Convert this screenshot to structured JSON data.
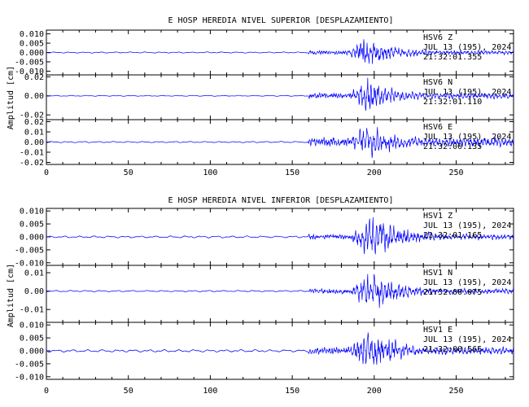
{
  "figure": {
    "title_top": "E HOSP HEREDIA NIVEL SUPERIOR [DESPLAZAMIENTO]",
    "title_bottom": "E HOSP HEREDIA NIVEL INFERIOR [DESPLAZAMIENTO]",
    "ylabel": "Amplitud [cm]",
    "trace_color": "#0000ff"
  },
  "chart_data": [
    {
      "type": "line",
      "title": "E HOSP HEREDIA NIVEL SUPERIOR [DESPLAZAMIENTO]",
      "ylabel": "Amplitud [cm]",
      "xlim": [
        0,
        285
      ],
      "xticks": [
        "0",
        "50",
        "100",
        "150",
        "200",
        "250"
      ],
      "traces": [
        {
          "station": "HSV6",
          "component": "Z",
          "date": "JUL 13 (195), 2024",
          "time": "21:32:01.355",
          "ylim": [
            -0.012,
            0.012
          ],
          "yticks": [
            "0.010",
            "0.005",
            "0.000",
            "-0.005",
            "-0.010"
          ],
          "pre": 0.0004,
          "mid": 0.0015,
          "peak": 0.0102,
          "peak_t": 194,
          "seed": 11
        },
        {
          "station": "HSV6",
          "component": "N",
          "date": "JUL 13 (195), 2024",
          "time": "21:32:01.110",
          "ylim": [
            -0.025,
            0.022
          ],
          "yticks": [
            "0.02",
            "0.00",
            "-0.02"
          ],
          "pre": 0.0006,
          "mid": 0.004,
          "peak": 0.021,
          "peak_t": 196,
          "seed": 23
        },
        {
          "station": "HSV6",
          "component": "E",
          "date": "JUL 13 (195), 2024",
          "time": "21:32:00.135",
          "ylim": [
            -0.022,
            0.022
          ],
          "yticks": [
            "0.02",
            "0.01",
            "0.00",
            "-0.01",
            "-0.02"
          ],
          "pre": 0.0008,
          "mid": 0.006,
          "peak": 0.021,
          "peak_t": 196,
          "seed": 37
        }
      ]
    },
    {
      "type": "line",
      "title": "E HOSP HEREDIA NIVEL INFERIOR [DESPLAZAMIENTO]",
      "ylabel": "Amplitud [cm]",
      "xlim": [
        0,
        285
      ],
      "xticks": [
        "0",
        "50",
        "100",
        "150",
        "200",
        "250"
      ],
      "traces": [
        {
          "station": "HSV1",
          "component": "Z",
          "date": "JUL 13 (195), 2024",
          "time": "21:32:01.165",
          "ylim": [
            -0.011,
            0.011
          ],
          "yticks": [
            "0.010",
            "0.005",
            "0.000",
            "-0.005",
            "-0.010"
          ],
          "pre": 0.0005,
          "mid": 0.0014,
          "peak": 0.0105,
          "peak_t": 199,
          "seed": 51
        },
        {
          "station": "HSV1",
          "component": "N",
          "date": "JUL 13 (195), 2024",
          "time": "21:32:00.075",
          "ylim": [
            -0.017,
            0.014
          ],
          "yticks": [
            "0.01",
            "0.00",
            "-0.01"
          ],
          "pre": 0.0005,
          "mid": 0.0018,
          "peak": 0.013,
          "peak_t": 198,
          "seed": 67
        },
        {
          "station": "HSV1",
          "component": "E",
          "date": "JUL 13 (195), 2024",
          "time": "21:32:00.565",
          "ylim": [
            -0.011,
            0.011
          ],
          "yticks": [
            "0.010",
            "0.005",
            "0.000",
            "-0.005",
            "-0.010"
          ],
          "pre": 0.0006,
          "mid": 0.0018,
          "peak": 0.0105,
          "peak_t": 196,
          "seed": 79
        }
      ]
    }
  ]
}
